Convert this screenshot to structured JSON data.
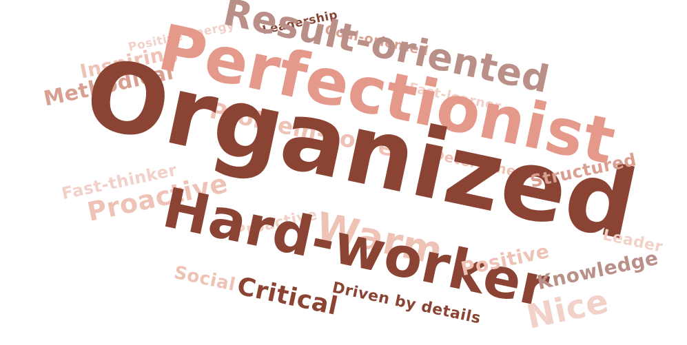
{
  "words": {
    "organized": "Organized",
    "perfectionist": "Perfectionist",
    "result_oriented": "Result-oriented",
    "hard_worker": "Hard-worker",
    "warm": "Warm",
    "problem_solver": "Problem-solver",
    "proactive_large": "Proactive",
    "proactive_small": "Proactive",
    "fast_thinker": "Fast-thinker",
    "methodical": "Methodical",
    "inspiring": "Inspiring",
    "positive_energy": "Positive Energy",
    "leadership": "Leadership",
    "goal_oriented": "Goal-oriented",
    "fast_learner": "Fast-learner",
    "determined": "Determined",
    "structured": "Structured",
    "leader": "Leader",
    "positive": "Positive",
    "knowledge": "Knowledge",
    "nice": "Nice",
    "social": "Social",
    "critical": "Critical",
    "driven_by_details": "Driven by details"
  },
  "palette": {
    "dark": "#8b4434",
    "mid": "#b98f88",
    "salmon": "#e5998a",
    "light": "#efc2b6",
    "pale": "#f1d1c8",
    "rose": "#d9a092"
  }
}
